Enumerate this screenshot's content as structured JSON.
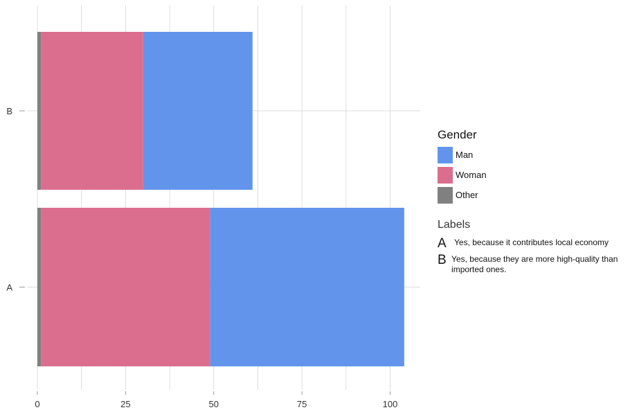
{
  "chart_data": {
    "type": "bar",
    "orientation": "horizontal",
    "stacked": true,
    "categories": [
      "B",
      "A"
    ],
    "series": [
      {
        "name": "Other",
        "color": "#808080",
        "values": [
          1,
          1
        ]
      },
      {
        "name": "Woman",
        "color": "#db6e8e",
        "values": [
          29,
          48
        ]
      },
      {
        "name": "Man",
        "color": "#6394ec",
        "values": [
          31,
          55
        ]
      }
    ],
    "xlim": [
      0,
      108
    ],
    "xticks": [
      0,
      25,
      50,
      75,
      100
    ],
    "grid": true,
    "legend_position": "right"
  },
  "legend": {
    "title": "Gender",
    "items": [
      {
        "label": "Man",
        "color": "#6394ec"
      },
      {
        "label": "Woman",
        "color": "#db6e8e"
      },
      {
        "label": "Other",
        "color": "#808080"
      }
    ]
  },
  "labels": {
    "title": "Labels",
    "items": [
      {
        "key": "A",
        "text": "Yes, because it contributes local economy"
      },
      {
        "key": "B",
        "text": "Yes, because they are more high-quality than imported ones."
      }
    ]
  }
}
